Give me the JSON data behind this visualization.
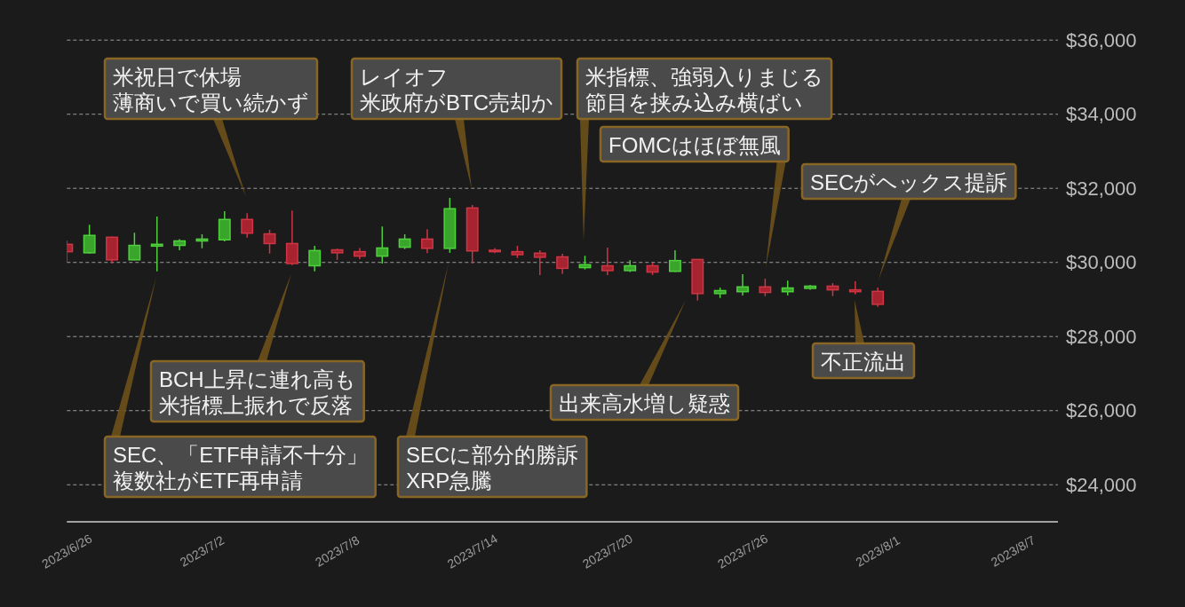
{
  "chart_data": {
    "type": "candlestick",
    "x": [
      "2023-06-26",
      "2023-06-27",
      "2023-06-28",
      "2023-06-29",
      "2023-06-30",
      "2023-07-01",
      "2023-07-02",
      "2023-07-03",
      "2023-07-04",
      "2023-07-05",
      "2023-07-06",
      "2023-07-07",
      "2023-07-08",
      "2023-07-09",
      "2023-07-10",
      "2023-07-11",
      "2023-07-12",
      "2023-07-13",
      "2023-07-14",
      "2023-07-15",
      "2023-07-16",
      "2023-07-17",
      "2023-07-18",
      "2023-07-19",
      "2023-07-20",
      "2023-07-21",
      "2023-07-22",
      "2023-07-23",
      "2023-07-24",
      "2023-07-25",
      "2023-07-26",
      "2023-07-27",
      "2023-07-28",
      "2023-07-29",
      "2023-07-30",
      "2023-07-31",
      "2023-08-01"
    ],
    "ohlc": [
      [
        30490,
        30590,
        30010,
        30290
      ],
      [
        30260,
        31020,
        30240,
        30730
      ],
      [
        30680,
        30700,
        29970,
        30070
      ],
      [
        30070,
        30800,
        30060,
        30460
      ],
      [
        30440,
        31240,
        29760,
        30490
      ],
      [
        30460,
        30630,
        30330,
        30580
      ],
      [
        30580,
        30760,
        30380,
        30630
      ],
      [
        30610,
        31380,
        30570,
        31160
      ],
      [
        31160,
        31330,
        30670,
        30790
      ],
      [
        30770,
        30880,
        30240,
        30510
      ],
      [
        30510,
        31400,
        29930,
        29970
      ],
      [
        29910,
        30450,
        29760,
        30320
      ],
      [
        30340,
        30370,
        30070,
        30260
      ],
      [
        30290,
        30390,
        30090,
        30170
      ],
      [
        30170,
        30970,
        29970,
        30390
      ],
      [
        30410,
        30760,
        30360,
        30630
      ],
      [
        30630,
        30900,
        30250,
        30380
      ],
      [
        30380,
        31740,
        30260,
        31450
      ],
      [
        31470,
        31550,
        29970,
        30310
      ],
      [
        30330,
        30390,
        30250,
        30290
      ],
      [
        30290,
        30450,
        30120,
        30210
      ],
      [
        30250,
        30330,
        29660,
        30140
      ],
      [
        30150,
        30230,
        29690,
        29840
      ],
      [
        29860,
        30180,
        29810,
        29940
      ],
      [
        29910,
        30400,
        29660,
        29780
      ],
      [
        29780,
        30060,
        29740,
        29910
      ],
      [
        29910,
        29990,
        29660,
        29740
      ],
      [
        29760,
        30330,
        29740,
        30050
      ],
      [
        30080,
        30090,
        28970,
        29160
      ],
      [
        29160,
        29320,
        29040,
        29240
      ],
      [
        29210,
        29680,
        29110,
        29340
      ],
      [
        29340,
        29560,
        29090,
        29190
      ],
      [
        29210,
        29510,
        29110,
        29310
      ],
      [
        29300,
        29390,
        29260,
        29360
      ],
      [
        29360,
        29440,
        29090,
        29260
      ],
      [
        29260,
        29490,
        29140,
        29210
      ],
      [
        29220,
        29320,
        28800,
        28870
      ]
    ],
    "colors": [
      "#a6232f",
      "#3aa52b",
      "#a6232f",
      "#3aa52b",
      "#3aa52b",
      "#3aa52b",
      "#3aa52b",
      "#3aa52b",
      "#a6232f",
      "#a6232f",
      "#a6232f",
      "#3aa52b",
      "#a6232f",
      "#a6232f",
      "#3aa52b",
      "#3aa52b",
      "#a6232f",
      "#3aa52b",
      "#a6232f",
      "#a6232f",
      "#a6232f",
      "#a6232f",
      "#a6232f",
      "#3aa52b",
      "#a6232f",
      "#3aa52b",
      "#a6232f",
      "#3aa52b",
      "#a6232f",
      "#3aa52b",
      "#3aa52b",
      "#a6232f",
      "#3aa52b",
      "#3aa52b",
      "#a6232f",
      "#a6232f",
      "#a6232f"
    ],
    "xlim": [
      "2023-06-26",
      "2023-08-09"
    ],
    "xticks": [
      {
        "value": "2023-06-26",
        "label": "2023/6/26"
      },
      {
        "value": "2023-07-02",
        "label": "2023/7/2"
      },
      {
        "value": "2023-07-08",
        "label": "2023/7/8"
      },
      {
        "value": "2023-07-14",
        "label": "2023/7/14"
      },
      {
        "value": "2023-07-20",
        "label": "2023/7/20"
      },
      {
        "value": "2023-07-26",
        "label": "2023/7/26"
      },
      {
        "value": "2023-08-01",
        "label": "2023/8/1"
      },
      {
        "value": "2023-08-07",
        "label": "2023/8/7"
      }
    ],
    "ylim": [
      23000,
      36000
    ],
    "yticks": [
      {
        "value": 24000,
        "label": "$24,000"
      },
      {
        "value": 26000,
        "label": "$26,000"
      },
      {
        "value": 28000,
        "label": "$28,000"
      },
      {
        "value": 30000,
        "label": "$30,000"
      },
      {
        "value": 32000,
        "label": "$32,000"
      },
      {
        "value": 34000,
        "label": "$34,000"
      },
      {
        "value": 36000,
        "label": "$36,000"
      }
    ],
    "grid": "y",
    "annotations": [
      "米祝日で休場薄商いで買い続かず",
      "レイオフ米政府がBTC売却か",
      "米指標、強弱入りまじる節目を挟み込み横ばい",
      "FOMCはほぼ無風",
      "SECがヘックス提訴",
      "不正流出",
      "出来高水増し疑惑",
      "SECに部分的勝訴XRP急騰",
      "BCH上昇に連れ高も米指標上振れで反落",
      "SEC、「ETF申請不十分」複数社がETF再申請"
    ]
  }
}
